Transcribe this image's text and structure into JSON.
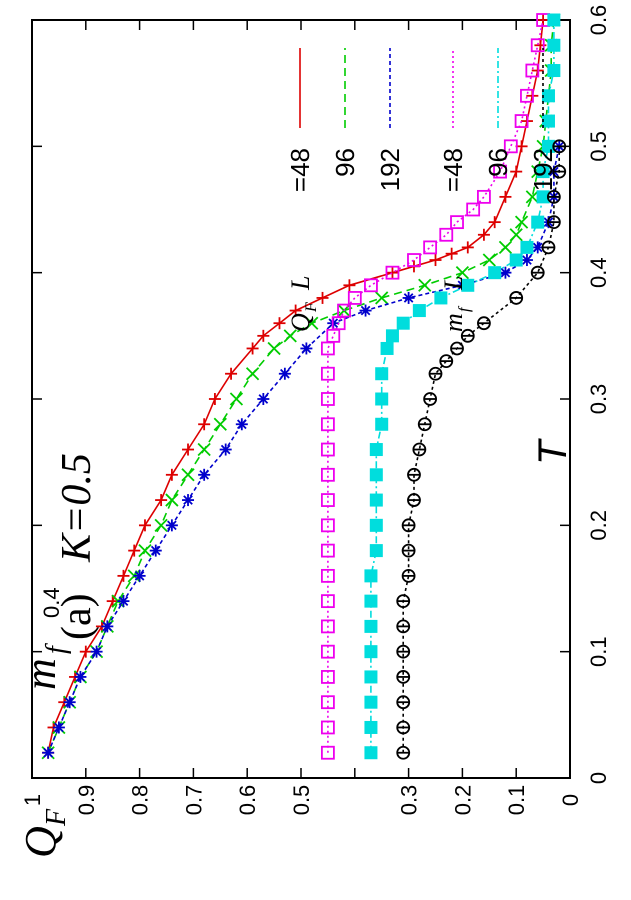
{
  "chart_data": {
    "type": "line",
    "orientation": "rotated-90-ccw",
    "panel_label": "(a)",
    "annotation": "K=0.5",
    "xlabel": "T",
    "ylabel_top": "Q_F",
    "ylabel_bottom": "m_f",
    "xlim": [
      0,
      0.6
    ],
    "ylim": [
      0,
      1
    ],
    "x_ticks": [
      "0",
      "0.1",
      "0.2",
      "0.3",
      "0.4",
      "0.5",
      "0.6"
    ],
    "y_ticks": [
      "0",
      "0.1",
      "0.2",
      "0.3",
      "0.4",
      "0.5",
      "0.6",
      "0.7",
      "0.8",
      "0.9",
      "1"
    ],
    "y_tick_04_label": "0.4",
    "legend_position": "top-right",
    "legend": {
      "QF": {
        "symbol": "Q",
        "sub": "F",
        "sizeprefix": "L"
      },
      "mf": {
        "symbol": "m",
        "sub": "f",
        "sizeprefix": "L"
      }
    },
    "series": [
      {
        "name": "L=48",
        "legend_label": "=48",
        "group": "QF",
        "color": "#dd0000",
        "dash": "",
        "marker": "plus",
        "x": [
          0.02,
          0.04,
          0.06,
          0.08,
          0.1,
          0.12,
          0.14,
          0.16,
          0.18,
          0.2,
          0.22,
          0.24,
          0.26,
          0.28,
          0.3,
          0.32,
          0.34,
          0.35,
          0.36,
          0.37,
          0.38,
          0.39,
          0.4,
          0.405,
          0.41,
          0.415,
          0.42,
          0.43,
          0.44,
          0.46,
          0.48,
          0.5,
          0.52,
          0.54,
          0.56,
          0.58,
          0.6
        ],
        "y": [
          0.97,
          0.96,
          0.94,
          0.92,
          0.9,
          0.87,
          0.85,
          0.83,
          0.81,
          0.79,
          0.76,
          0.74,
          0.71,
          0.68,
          0.66,
          0.63,
          0.59,
          0.57,
          0.54,
          0.51,
          0.46,
          0.41,
          0.33,
          0.29,
          0.25,
          0.22,
          0.19,
          0.16,
          0.14,
          0.12,
          0.1,
          0.09,
          0.08,
          0.07,
          0.06,
          0.055,
          0.05
        ]
      },
      {
        "name": "96",
        "legend_label": "96",
        "group": "QF",
        "color": "#00cc00",
        "dash": "8,5",
        "marker": "x",
        "x": [
          0.02,
          0.04,
          0.06,
          0.08,
          0.1,
          0.12,
          0.14,
          0.16,
          0.18,
          0.2,
          0.22,
          0.24,
          0.26,
          0.28,
          0.3,
          0.32,
          0.34,
          0.35,
          0.36,
          0.37,
          0.38,
          0.39,
          0.4,
          0.41,
          0.42,
          0.43,
          0.44,
          0.46,
          0.48,
          0.5,
          0.52,
          0.54,
          0.56,
          0.58,
          0.6
        ],
        "y": [
          0.97,
          0.95,
          0.93,
          0.91,
          0.88,
          0.86,
          0.84,
          0.81,
          0.79,
          0.76,
          0.74,
          0.71,
          0.68,
          0.65,
          0.62,
          0.59,
          0.55,
          0.52,
          0.48,
          0.42,
          0.35,
          0.27,
          0.2,
          0.15,
          0.12,
          0.1,
          0.09,
          0.07,
          0.06,
          0.05,
          0.045,
          0.04,
          0.035,
          0.035,
          0.03
        ]
      },
      {
        "name": "192",
        "legend_label": "192",
        "group": "QF",
        "color": "#0000cc",
        "dash": "4,3",
        "marker": "star",
        "x": [
          0.02,
          0.04,
          0.06,
          0.08,
          0.1,
          0.12,
          0.14,
          0.16,
          0.18,
          0.2,
          0.22,
          0.24,
          0.26,
          0.28,
          0.3,
          0.32,
          0.34,
          0.36,
          0.37,
          0.38,
          0.39,
          0.4,
          0.41,
          0.42,
          0.44,
          0.46,
          0.48,
          0.5
        ],
        "y": [
          0.97,
          0.95,
          0.93,
          0.91,
          0.88,
          0.86,
          0.83,
          0.8,
          0.77,
          0.74,
          0.71,
          0.68,
          0.64,
          0.61,
          0.57,
          0.53,
          0.49,
          0.44,
          0.38,
          0.3,
          0.2,
          0.12,
          0.08,
          0.06,
          0.04,
          0.03,
          0.03,
          0.02
        ]
      },
      {
        "name": "L=48",
        "legend_label": "=48",
        "group": "mf",
        "color": "#ee00ee",
        "dash": "2,3",
        "marker": "square-open",
        "x": [
          0.02,
          0.04,
          0.06,
          0.08,
          0.1,
          0.12,
          0.14,
          0.16,
          0.18,
          0.2,
          0.22,
          0.24,
          0.26,
          0.28,
          0.3,
          0.32,
          0.34,
          0.35,
          0.36,
          0.37,
          0.38,
          0.39,
          0.4,
          0.41,
          0.42,
          0.43,
          0.44,
          0.45,
          0.46,
          0.48,
          0.5,
          0.52,
          0.54,
          0.56,
          0.58,
          0.6
        ],
        "y": [
          0.45,
          0.45,
          0.45,
          0.45,
          0.45,
          0.45,
          0.45,
          0.45,
          0.45,
          0.45,
          0.45,
          0.45,
          0.45,
          0.45,
          0.45,
          0.45,
          0.45,
          0.44,
          0.43,
          0.42,
          0.4,
          0.37,
          0.33,
          0.29,
          0.26,
          0.23,
          0.21,
          0.18,
          0.16,
          0.13,
          0.11,
          0.09,
          0.08,
          0.07,
          0.06,
          0.05
        ]
      },
      {
        "name": "96",
        "legend_label": "96",
        "group": "mf",
        "color": "#00dddd",
        "dash": "7,3,2,3",
        "marker": "square-filled",
        "x": [
          0.02,
          0.04,
          0.06,
          0.08,
          0.1,
          0.12,
          0.14,
          0.16,
          0.18,
          0.2,
          0.22,
          0.24,
          0.26,
          0.28,
          0.3,
          0.32,
          0.34,
          0.35,
          0.36,
          0.37,
          0.38,
          0.39,
          0.4,
          0.41,
          0.42,
          0.44,
          0.46,
          0.48,
          0.5,
          0.52,
          0.54,
          0.56,
          0.58,
          0.6
        ],
        "y": [
          0.37,
          0.37,
          0.37,
          0.37,
          0.37,
          0.37,
          0.37,
          0.37,
          0.36,
          0.36,
          0.36,
          0.36,
          0.36,
          0.35,
          0.35,
          0.35,
          0.34,
          0.33,
          0.31,
          0.28,
          0.24,
          0.19,
          0.14,
          0.1,
          0.08,
          0.06,
          0.05,
          0.05,
          0.04,
          0.04,
          0.04,
          0.03,
          0.03,
          0.03
        ]
      },
      {
        "name": "192",
        "legend_label": "192",
        "group": "mf",
        "color": "#000000",
        "dash": "3,3",
        "marker": "circle-plus",
        "x": [
          0.02,
          0.04,
          0.06,
          0.08,
          0.1,
          0.12,
          0.14,
          0.16,
          0.18,
          0.2,
          0.22,
          0.24,
          0.26,
          0.28,
          0.3,
          0.32,
          0.33,
          0.34,
          0.35,
          0.36,
          0.38,
          0.4,
          0.42,
          0.44,
          0.46,
          0.48,
          0.5
        ],
        "y": [
          0.31,
          0.31,
          0.31,
          0.31,
          0.31,
          0.31,
          0.31,
          0.3,
          0.3,
          0.3,
          0.29,
          0.29,
          0.28,
          0.27,
          0.26,
          0.25,
          0.23,
          0.21,
          0.19,
          0.16,
          0.1,
          0.06,
          0.04,
          0.03,
          0.03,
          0.02,
          0.02
        ]
      }
    ]
  }
}
